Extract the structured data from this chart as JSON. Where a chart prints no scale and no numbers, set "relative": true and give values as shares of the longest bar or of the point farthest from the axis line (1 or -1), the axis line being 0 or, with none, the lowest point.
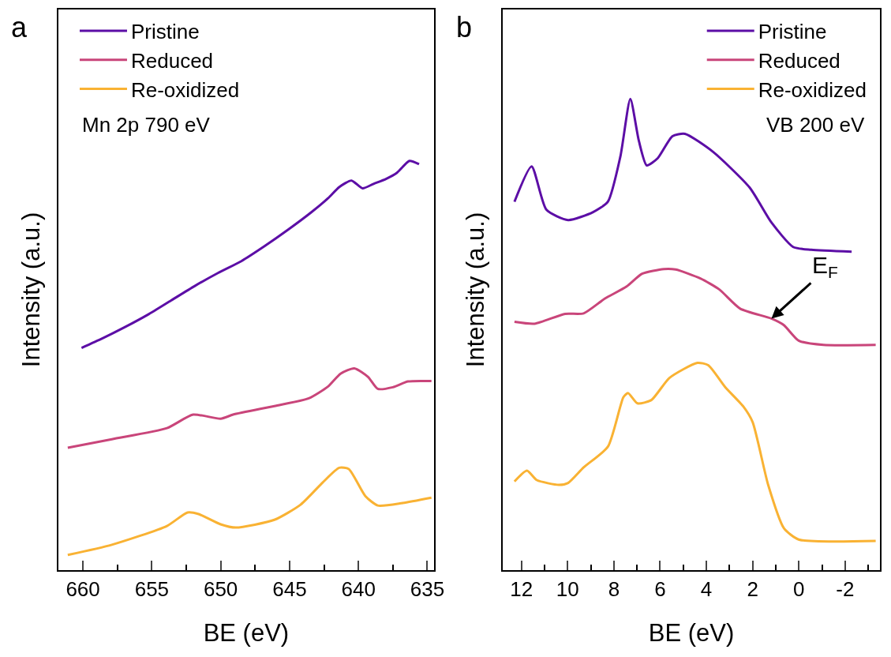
{
  "chart_data": [
    {
      "type": "line",
      "relative": true,
      "xlabel": "BE (eV)",
      "ylabel": "Intensity (a.u.)",
      "xlim": [
        661.8,
        634.5
      ],
      "xticks": [
        660,
        655,
        650,
        645,
        640,
        635
      ],
      "legend": "top left",
      "annotations": [
        "a",
        "Mn 2p 790 eV"
      ],
      "series": [
        {
          "name": "Pristine",
          "color": "#5c0ea6",
          "x": [
            660.1,
            658.6,
            657.0,
            655.3,
            653.6,
            651.9,
            650.2,
            648.5,
            646.8,
            645.1,
            643.4,
            642.2,
            641.4,
            640.5,
            639.7,
            638.9,
            638.0,
            637.2,
            636.3,
            635.6
          ],
          "values": [
            0.543,
            0.566,
            0.593,
            0.624,
            0.659,
            0.694,
            0.726,
            0.755,
            0.792,
            0.832,
            0.875,
            0.909,
            0.936,
            0.952,
            0.933,
            0.944,
            0.956,
            0.971,
            1.0,
            0.992
          ]
        },
        {
          "name": "Reduced",
          "color": "#c9457a",
          "x": [
            661.1,
            657.9,
            653.9,
            652.0,
            650.0,
            649.1,
            646.1,
            643.6,
            642.2,
            641.3,
            640.3,
            639.3,
            638.6,
            637.5,
            636.4,
            634.7
          ],
          "values": [
            0.299,
            0.32,
            0.347,
            0.38,
            0.37,
            0.38,
            0.401,
            0.42,
            0.449,
            0.48,
            0.493,
            0.472,
            0.443,
            0.447,
            0.461,
            0.462
          ]
        },
        {
          "name": "Re-oxidized",
          "color": "#f9b233",
          "x": [
            661.1,
            657.9,
            653.9,
            652.4,
            651.6,
            650.0,
            648.9,
            646.1,
            644.2,
            642.6,
            641.4,
            640.7,
            639.5,
            638.6,
            636.8,
            634.7
          ],
          "values": [
            0.037,
            0.062,
            0.108,
            0.141,
            0.137,
            0.112,
            0.104,
            0.123,
            0.16,
            0.214,
            0.25,
            0.247,
            0.181,
            0.158,
            0.164,
            0.177
          ]
        }
      ]
    },
    {
      "type": "line",
      "relative": true,
      "xlabel": "BE (eV)",
      "ylabel": "Intensity (a.u.)",
      "xlim": [
        12.8,
        -3.5
      ],
      "xticks": [
        12,
        10,
        8,
        6,
        4,
        2,
        0,
        -2
      ],
      "legend": "top right",
      "annotations": [
        "b",
        "VB 200 eV",
        {
          "text": "E$_{F}$",
          "x": 1.19,
          "y": 0.534
        }
      ],
      "series": [
        {
          "name": "Pristine",
          "color": "#5c0ea6",
          "x": [
            12.3,
            11.56,
            10.92,
            9.98,
            8.9,
            8.26,
            7.72,
            7.29,
            6.92,
            6.58,
            6.11,
            5.47,
            4.93,
            3.72,
            2.13,
            1.19,
            0.25,
            -0.53,
            -2.28
          ],
          "values": [
            0.782,
            0.857,
            0.765,
            0.743,
            0.76,
            0.782,
            0.878,
            1.0,
            0.911,
            0.859,
            0.874,
            0.921,
            0.926,
            0.888,
            0.812,
            0.738,
            0.686,
            0.68,
            0.676
          ]
        },
        {
          "name": "Reduced",
          "color": "#c9457a",
          "x": [
            12.3,
            11.43,
            10.11,
            9.31,
            8.4,
            7.45,
            6.78,
            5.84,
            5.33,
            4.26,
            3.45,
            2.54,
            1.19,
            0.65,
            0.01,
            -1.06,
            -3.32
          ],
          "values": [
            0.527,
            0.523,
            0.544,
            0.545,
            0.576,
            0.602,
            0.629,
            0.639,
            0.638,
            0.619,
            0.596,
            0.555,
            0.534,
            0.52,
            0.487,
            0.478,
            0.478
          ]
        },
        {
          "name": "Re-oxidized",
          "color": "#f9b233",
          "x": [
            12.3,
            11.76,
            11.33,
            10.38,
            9.98,
            9.31,
            8.26,
            7.59,
            7.39,
            6.98,
            6.38,
            5.6,
            4.39,
            3.92,
            3.18,
            2.4,
            2.0,
            1.33,
            0.65,
            0.01,
            -3.32
          ],
          "values": [
            0.188,
            0.211,
            0.191,
            0.181,
            0.185,
            0.218,
            0.262,
            0.367,
            0.376,
            0.354,
            0.361,
            0.408,
            0.44,
            0.435,
            0.388,
            0.347,
            0.314,
            0.181,
            0.089,
            0.065,
            0.062
          ]
        }
      ]
    }
  ]
}
